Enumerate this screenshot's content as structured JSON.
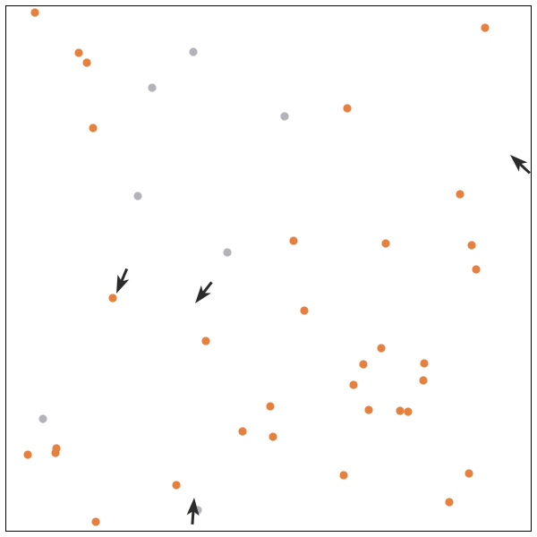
{
  "colors": {
    "background": "#ffffff",
    "border": "#000000",
    "active_dot": "#e5803f",
    "inactive_dot": "#b3b3b9",
    "agent": "#2b2b2b"
  },
  "icons": {
    "agent": "arrow-icon"
  }
}
